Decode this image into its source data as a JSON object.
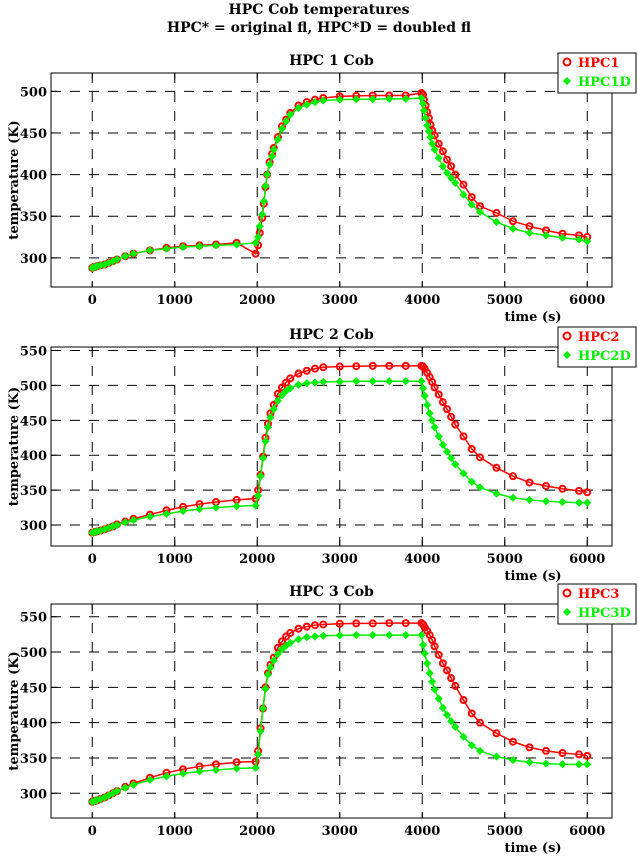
{
  "figure": {
    "title_line1": "HPC Cob temperatures",
    "title_line2": "HPC* = original fl, HPC*D = doubled fl"
  },
  "colors": {
    "original": "#ff0000",
    "doubled": "#00ee00"
  },
  "chart_data": [
    {
      "type": "line",
      "title": "HPC 1 Cob",
      "xlabel": "time (s)",
      "ylabel": "temperature (K)",
      "xlim": [
        -500,
        6300
      ],
      "ylim": [
        265,
        522
      ],
      "xticks": [
        0,
        1000,
        2000,
        3000,
        4000,
        5000,
        6000
      ],
      "yticks": [
        300,
        350,
        400,
        450,
        500
      ],
      "grid": true,
      "legend": "top-right",
      "series": [
        {
          "name": "HPC1",
          "marker": "open-circle",
          "x": [
            0,
            30,
            60,
            100,
            150,
            200,
            250,
            300,
            400,
            500,
            700,
            900,
            1100,
            1300,
            1500,
            1750,
            1980,
            2010,
            2030,
            2060,
            2080,
            2100,
            2120,
            2150,
            2180,
            2200,
            2250,
            2300,
            2350,
            2400,
            2500,
            2600,
            2700,
            2800,
            3000,
            3200,
            3400,
            3600,
            3800,
            3990,
            4010,
            4020,
            4040,
            4060,
            4080,
            4100,
            4120,
            4150,
            4200,
            4250,
            4300,
            4350,
            4400,
            4500,
            4600,
            4700,
            4900,
            5100,
            5300,
            5500,
            5700,
            5900,
            6000
          ],
          "y": [
            288,
            289,
            290,
            291,
            292,
            294,
            296,
            298,
            302,
            305,
            309,
            312,
            314,
            315,
            316,
            318,
            305,
            315,
            330,
            348,
            365,
            385,
            400,
            415,
            425,
            432,
            445,
            458,
            466,
            474,
            483,
            487,
            490,
            492,
            494,
            494.5,
            495,
            495,
            495,
            498,
            496,
            490,
            483,
            475,
            468,
            460,
            453,
            447,
            437,
            428,
            418,
            410,
            400,
            388,
            373,
            362,
            354,
            344,
            338,
            333,
            329,
            327,
            325
          ]
        },
        {
          "name": "HPC1D",
          "marker": "filled-diamond",
          "x": [
            0,
            30,
            60,
            100,
            150,
            200,
            250,
            300,
            400,
            500,
            700,
            900,
            1100,
            1300,
            1500,
            1750,
            1980,
            2010,
            2030,
            2060,
            2080,
            2100,
            2120,
            2150,
            2180,
            2200,
            2250,
            2300,
            2350,
            2400,
            2500,
            2600,
            2700,
            2800,
            3000,
            3200,
            3400,
            3600,
            3800,
            3990,
            4010,
            4020,
            4040,
            4060,
            4080,
            4100,
            4120,
            4150,
            4200,
            4250,
            4300,
            4350,
            4400,
            4500,
            4600,
            4700,
            4900,
            5100,
            5300,
            5500,
            5700,
            5900,
            6000
          ],
          "y": [
            288,
            289,
            290,
            291,
            292,
            294,
            296,
            298,
            302,
            305,
            309,
            311,
            313,
            314,
            315,
            316,
            318,
            325,
            338,
            352,
            368,
            386,
            400,
            412,
            422,
            430,
            442,
            455,
            464,
            472,
            480,
            484,
            487,
            489,
            490,
            490.5,
            490.5,
            491,
            491,
            492,
            485,
            477,
            468,
            459,
            452,
            445,
            437,
            430,
            420,
            410,
            402,
            396,
            390,
            376,
            364,
            355,
            343,
            335,
            330,
            327,
            324,
            322,
            320
          ]
        }
      ]
    },
    {
      "type": "line",
      "title": "HPC 2 Cob",
      "xlabel": "time (s)",
      "ylabel": "temperature (K)",
      "xlim": [
        -500,
        6300
      ],
      "ylim": [
        270,
        555
      ],
      "xticks": [
        0,
        1000,
        2000,
        3000,
        4000,
        5000,
        6000
      ],
      "yticks": [
        300,
        350,
        400,
        450,
        500,
        550
      ],
      "grid": true,
      "legend": "top-right",
      "series": [
        {
          "name": "HPC2",
          "marker": "open-circle",
          "x": [
            0,
            30,
            60,
            100,
            150,
            200,
            250,
            300,
            400,
            500,
            700,
            900,
            1100,
            1300,
            1500,
            1750,
            1980,
            2010,
            2040,
            2070,
            2100,
            2130,
            2160,
            2200,
            2250,
            2300,
            2350,
            2400,
            2500,
            2600,
            2700,
            2800,
            3000,
            3200,
            3400,
            3600,
            3800,
            3990,
            4010,
            4030,
            4060,
            4090,
            4120,
            4150,
            4200,
            4250,
            4300,
            4350,
            4400,
            4500,
            4600,
            4700,
            4900,
            5100,
            5300,
            5500,
            5700,
            5900,
            6000
          ],
          "y": [
            289,
            290,
            291,
            292,
            294,
            296,
            298,
            301,
            305,
            309,
            315,
            321,
            326,
            330,
            333,
            336,
            338,
            350,
            372,
            398,
            425,
            445,
            460,
            472,
            488,
            497,
            504,
            510,
            517,
            521,
            524,
            526,
            527,
            527.5,
            528,
            528,
            528,
            528,
            527,
            524,
            518,
            512,
            505,
            497,
            487,
            476,
            466,
            455,
            444,
            427,
            409,
            397,
            382,
            370,
            361,
            356,
            352,
            349,
            347
          ]
        },
        {
          "name": "HPC2D",
          "marker": "filled-diamond",
          "x": [
            0,
            30,
            60,
            100,
            150,
            200,
            250,
            300,
            400,
            500,
            700,
            900,
            1100,
            1300,
            1500,
            1750,
            1980,
            2010,
            2040,
            2070,
            2100,
            2130,
            2160,
            2200,
            2250,
            2300,
            2350,
            2400,
            2500,
            2600,
            2700,
            2800,
            3000,
            3200,
            3400,
            3600,
            3800,
            3990,
            4010,
            4030,
            4060,
            4090,
            4120,
            4150,
            4200,
            4250,
            4300,
            4350,
            4400,
            4500,
            4600,
            4700,
            4900,
            5100,
            5300,
            5500,
            5700,
            5900,
            6000
          ],
          "y": [
            289,
            290,
            291,
            292,
            294,
            296,
            298,
            300,
            304,
            307,
            312,
            316,
            320,
            323,
            325,
            327,
            328,
            342,
            370,
            396,
            420,
            440,
            454,
            466,
            478,
            486,
            492,
            496,
            501,
            503,
            504,
            505,
            505.5,
            506,
            506,
            506,
            506,
            506,
            496,
            485,
            472,
            460,
            450,
            440,
            427,
            415,
            405,
            396,
            387,
            374,
            362,
            354,
            345,
            339,
            336,
            334,
            333,
            332,
            332
          ]
        }
      ]
    },
    {
      "type": "line",
      "title": "HPC 3 Cob",
      "xlabel": "time (s)",
      "ylabel": "temperature (K)",
      "xlim": [
        -500,
        6300
      ],
      "ylim": [
        265,
        568
      ],
      "xticks": [
        0,
        1000,
        2000,
        3000,
        4000,
        5000,
        6000
      ],
      "yticks": [
        300,
        350,
        400,
        450,
        500,
        550
      ],
      "grid": true,
      "legend": "top-right",
      "series": [
        {
          "name": "HPC3",
          "marker": "open-circle",
          "x": [
            0,
            30,
            60,
            100,
            150,
            200,
            250,
            300,
            400,
            500,
            700,
            900,
            1100,
            1300,
            1500,
            1750,
            1980,
            2010,
            2040,
            2070,
            2100,
            2130,
            2160,
            2200,
            2250,
            2300,
            2350,
            2400,
            2500,
            2600,
            2700,
            2800,
            3000,
            3200,
            3400,
            3600,
            3800,
            3990,
            4010,
            4030,
            4060,
            4090,
            4120,
            4150,
            4200,
            4250,
            4300,
            4350,
            4400,
            4500,
            4600,
            4700,
            4900,
            5100,
            5300,
            5500,
            5700,
            5900,
            6000
          ],
          "y": [
            288,
            289,
            290,
            292,
            294,
            297,
            300,
            303,
            309,
            314,
            322,
            329,
            334,
            338,
            341,
            344,
            345,
            360,
            392,
            420,
            450,
            470,
            482,
            492,
            506,
            515,
            522,
            527,
            533,
            536,
            538,
            539,
            540,
            540.5,
            540.5,
            541,
            541,
            541,
            539,
            535,
            530,
            524,
            517,
            508,
            496,
            484,
            474,
            463,
            452,
            432,
            413,
            400,
            385,
            373,
            365,
            360,
            357,
            355,
            353
          ]
        },
        {
          "name": "HPC3D",
          "marker": "filled-diamond",
          "x": [
            0,
            30,
            60,
            100,
            150,
            200,
            250,
            300,
            400,
            500,
            700,
            900,
            1100,
            1300,
            1500,
            1750,
            1980,
            2010,
            2040,
            2070,
            2100,
            2130,
            2160,
            2200,
            2250,
            2300,
            2350,
            2400,
            2500,
            2600,
            2700,
            2800,
            3000,
            3200,
            3400,
            3600,
            3800,
            3990,
            4010,
            4030,
            4060,
            4090,
            4120,
            4150,
            4200,
            4250,
            4300,
            4350,
            4400,
            4500,
            4600,
            4700,
            4900,
            5100,
            5300,
            5500,
            5700,
            5900,
            6000
          ],
          "y": [
            288,
            289,
            290,
            292,
            294,
            297,
            300,
            303,
            308,
            312,
            319,
            324,
            328,
            331,
            333,
            335,
            336,
            355,
            388,
            420,
            448,
            468,
            478,
            488,
            497,
            504,
            509,
            513,
            518,
            521,
            522,
            523,
            523.5,
            524,
            524,
            524,
            524,
            524,
            510,
            498,
            484,
            470,
            458,
            447,
            434,
            421,
            411,
            402,
            394,
            380,
            368,
            360,
            352,
            347,
            344,
            342,
            341,
            341,
            341
          ]
        }
      ]
    }
  ]
}
